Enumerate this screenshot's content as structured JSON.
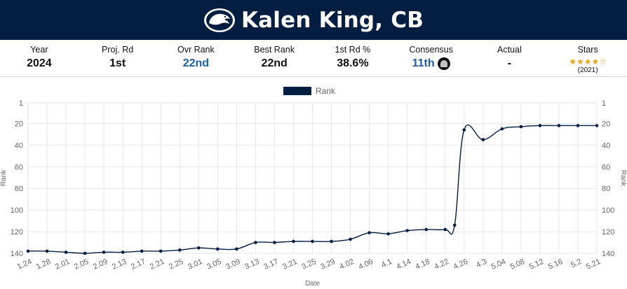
{
  "header": {
    "player_name": "Kalen King, CB",
    "logo_icon": "penn-state-nittany-lion-icon",
    "background_color": "#041e42"
  },
  "stats": [
    {
      "label": "Year",
      "value": "2024"
    },
    {
      "label": "Proj. Rd",
      "value": "1st"
    },
    {
      "label": "Ovr Rank",
      "value": "22nd",
      "link": true
    },
    {
      "label": "Best Rank",
      "value": "22nd"
    },
    {
      "label": "1st Rd %",
      "value": "38.6%"
    },
    {
      "label": "Consensus",
      "value": "11th",
      "link": true,
      "team_icon": "raiders-logo-icon"
    },
    {
      "label": "Actual",
      "value": "-"
    },
    {
      "label": "Stars",
      "stars": 4,
      "max_stars": 5,
      "star_year": "(2021)"
    }
  ],
  "chart_data": {
    "type": "line",
    "xlabel": "Date",
    "ylabel": "Rank",
    "y_reversed": true,
    "ylim": [
      1,
      140
    ],
    "y_ticks": [
      1,
      20,
      40,
      60,
      80,
      100,
      120,
      140
    ],
    "y_tick_labels": [
      "1",
      "20",
      "40",
      "60",
      "80",
      "100",
      "120",
      "140"
    ],
    "grid": true,
    "legend_position": "top-center",
    "categories": [
      "1.24",
      "1.28",
      "2.01",
      "2.05",
      "2.09",
      "2.13",
      "2.17",
      "2.21",
      "2.25",
      "3.01",
      "3.05",
      "3.09",
      "3.13",
      "3.17",
      "3.21",
      "3.25",
      "3.29",
      "4.02",
      "4.06",
      "4.1",
      "4.14",
      "4.18",
      "4.22",
      "4.26",
      "4.3",
      "5.04",
      "5.08",
      "5.12",
      "5.16",
      "5.2",
      "5.21"
    ],
    "series": [
      {
        "name": "Rank",
        "color": "#041e42",
        "x": [
          0,
          1,
          2,
          3,
          4,
          5,
          6,
          7,
          8,
          9,
          10,
          11,
          12,
          13,
          14,
          15,
          16,
          17,
          18,
          19,
          20,
          21,
          22,
          22.5,
          23,
          24,
          25,
          26,
          27,
          28,
          29,
          30
        ],
        "values": [
          138,
          138,
          139,
          140,
          139,
          139,
          138,
          138,
          137,
          135,
          136,
          136,
          130,
          130,
          129,
          129,
          129,
          127,
          121,
          122,
          119,
          118,
          118,
          114,
          26,
          35,
          25,
          23,
          22,
          22,
          22,
          22
        ]
      }
    ]
  }
}
